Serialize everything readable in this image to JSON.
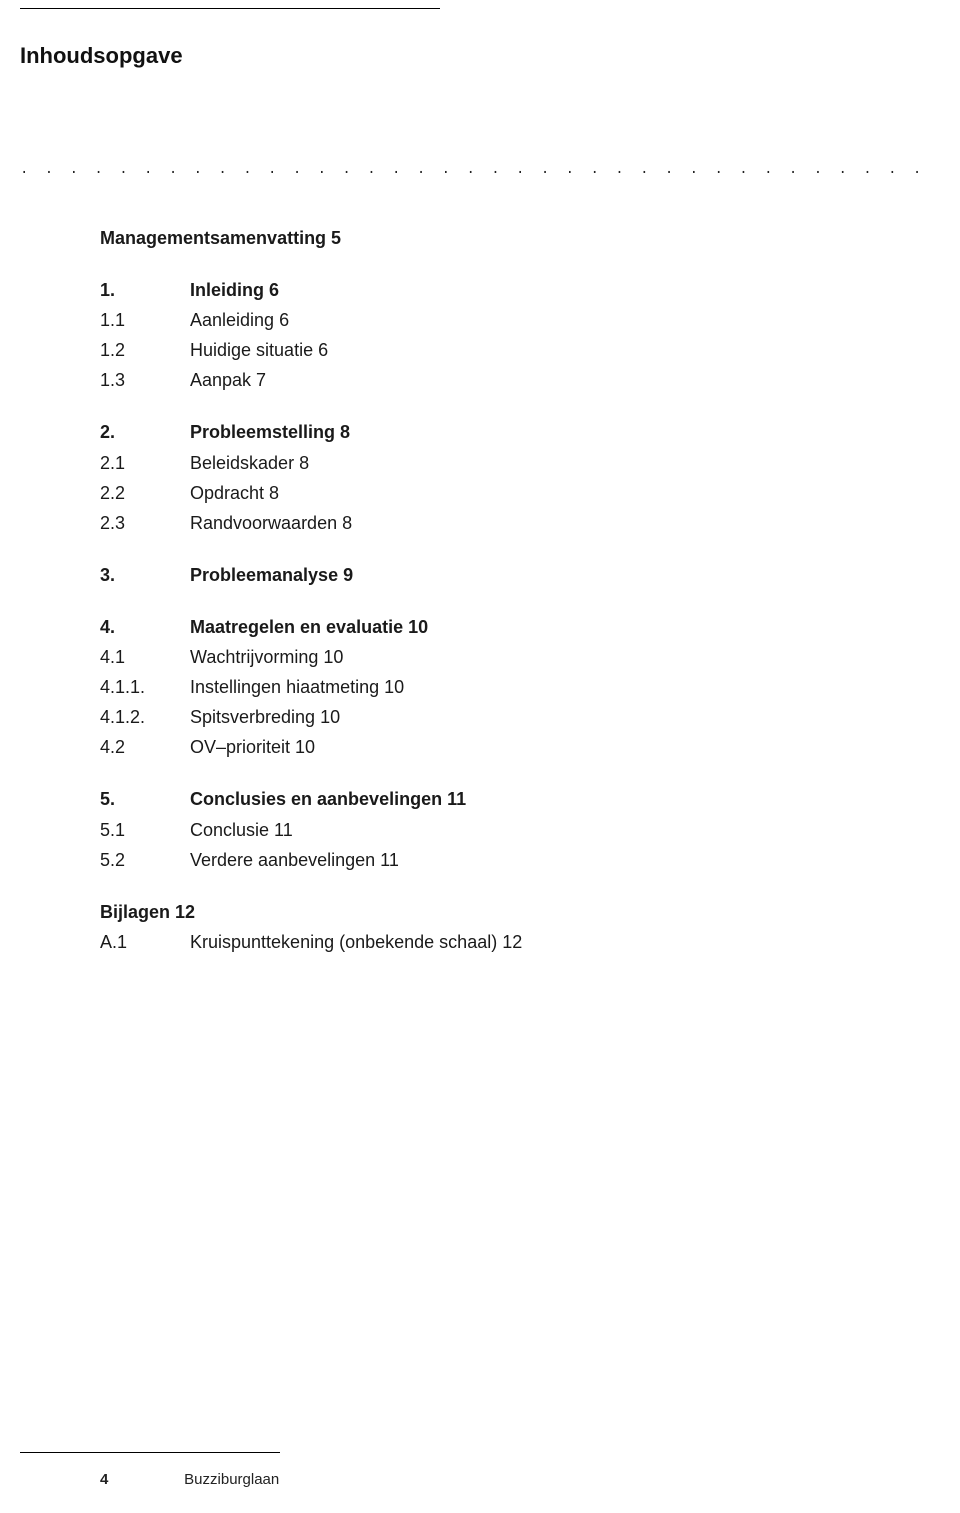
{
  "page_title": "Inhoudsopgave",
  "dot_row": ". . . . . . . . . . . . . . . . . . . . . . . . . . . . . . . . . . . . . . . . . . . . . . . . . . . . . . . . . . . . . . . . . . . . . . . . . . . . . . . . . . . . . . . .",
  "summary": {
    "label": "Managementsamenvatting 5"
  },
  "sections": [
    {
      "num": "1.",
      "label": "Inleiding 6",
      "bold": true,
      "items": [
        {
          "num": "1.1",
          "label": "Aanleiding 6"
        },
        {
          "num": "1.2",
          "label": "Huidige situatie 6"
        },
        {
          "num": "1.3",
          "label": "Aanpak 7"
        }
      ]
    },
    {
      "num": "2.",
      "label": "Probleemstelling 8",
      "bold": true,
      "items": [
        {
          "num": "2.1",
          "label": "Beleidskader 8"
        },
        {
          "num": "2.2",
          "label": "Opdracht 8"
        },
        {
          "num": "2.3",
          "label": "Randvoorwaarden 8"
        }
      ]
    },
    {
      "num": "3.",
      "label": "Probleemanalyse 9",
      "bold": true,
      "items": []
    },
    {
      "num": "4.",
      "label": "Maatregelen en evaluatie 10",
      "bold": true,
      "items": [
        {
          "num": "4.1",
          "label": "Wachtrijvorming 10"
        },
        {
          "num": "4.1.1.",
          "label": "Instellingen hiaatmeting 10"
        },
        {
          "num": "4.1.2.",
          "label": "Spitsverbreding 10"
        },
        {
          "num": "4.2",
          "label": "OV–prioriteit 10"
        }
      ]
    },
    {
      "num": "5.",
      "label": "Conclusies en aanbevelingen 11",
      "bold": true,
      "items": [
        {
          "num": "5.1",
          "label": "Conclusie 11"
        },
        {
          "num": "5.2",
          "label": "Verdere aanbevelingen 11"
        }
      ]
    }
  ],
  "appendix": {
    "heading": {
      "label": "Bijlagen 12"
    },
    "items": [
      {
        "num": "A.1",
        "label": "Kruispunttekening (onbekende schaal) 12"
      }
    ]
  },
  "footer": {
    "page_number": "4",
    "doc_title": "Buzziburglaan"
  }
}
